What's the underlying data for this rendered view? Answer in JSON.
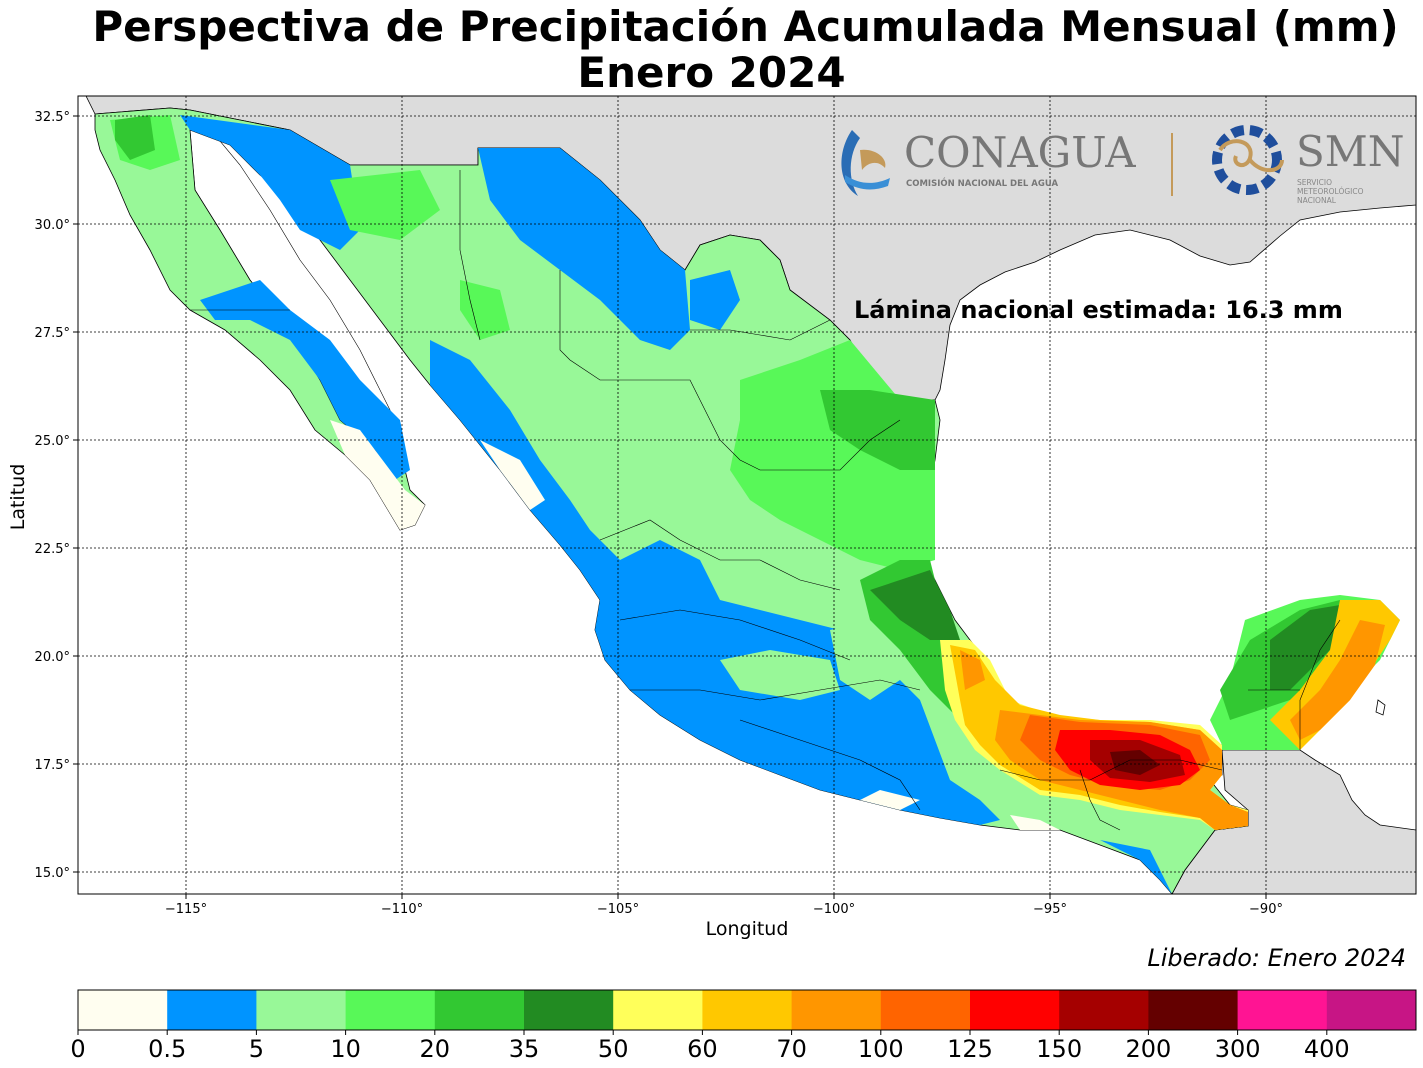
{
  "title": {
    "line1": "Perspectiva de Precipitación Acumulada Mensual (mm)",
    "line2": "Enero 2024"
  },
  "map": {
    "xlabel": "Longitud",
    "ylabel": "Latitud",
    "lon_ticks": [
      "−115°",
      "−110°",
      "−105°",
      "−100°",
      "−95°",
      "−90°"
    ],
    "lat_ticks": [
      "32.5°",
      "30.0°",
      "27.5°",
      "25.0°",
      "22.5°",
      "20.0°",
      "17.5°",
      "15.0°"
    ],
    "annotation": "Lámina nacional estimada: 16.3 mm",
    "released": "Liberado: Enero 2024"
  },
  "logos": {
    "conagua_name": "CONAGUA",
    "conagua_sub": "COMISIÓN NACIONAL DEL AGUA",
    "smn_name": "SMN",
    "smn_sub": [
      "SERVICIO",
      "METEOROLÓGICO",
      "NACIONAL"
    ]
  },
  "colorbar": {
    "labels": [
      "0",
      "0.5",
      "5",
      "10",
      "20",
      "35",
      "50",
      "60",
      "70",
      "100",
      "125",
      "150",
      "200",
      "300",
      "400"
    ],
    "colors": [
      "#fffef0",
      "#0094ff",
      "#98f898",
      "#58f858",
      "#32c832",
      "#228b22",
      "#ffff5a",
      "#ffc800",
      "#ff9600",
      "#ff6400",
      "#ff0000",
      "#a50000",
      "#640000",
      "#ff1493",
      "#c71585"
    ]
  }
}
